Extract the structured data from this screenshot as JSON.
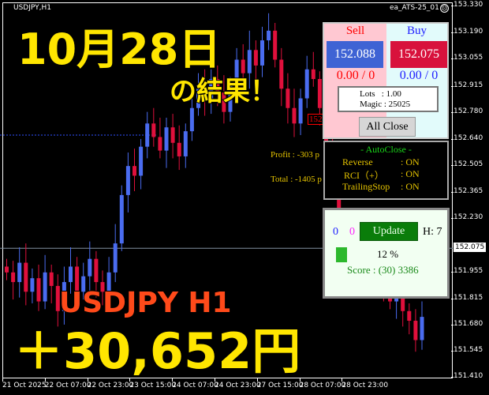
{
  "window": {
    "symbol_title": "USDJPY,H1",
    "ea_name": "ea_ATS-25_01",
    "ea_status_icon": "sad-face-icon"
  },
  "axis": {
    "y_ticks": [
      "153.330",
      "153.190",
      "153.055",
      "152.915",
      "152.780",
      "152.640",
      "152.505",
      "152.365",
      "152.230",
      "151.955",
      "151.815",
      "151.680",
      "151.545",
      "151.410"
    ],
    "y_range": [
      151.41,
      153.33
    ],
    "current_price": "152.075",
    "x_ticks": [
      "21 Oct 2025",
      "22 Oct 07:00",
      "22 Oct 23:00",
      "23 Oct 15:00",
      "24 Oct 07:00",
      "24 Oct 23:00",
      "27 Oct 15:00",
      "28 Oct 07:00",
      "28 Oct 23:00"
    ]
  },
  "candles_close": [
    151.95,
    151.9,
    152.0,
    151.85,
    151.92,
    151.8,
    151.95,
    151.88,
    151.75,
    151.9,
    151.98,
    151.85,
    151.93,
    152.02,
    151.9,
    151.85,
    151.95,
    152.1,
    152.35,
    152.5,
    152.45,
    152.6,
    152.72,
    152.65,
    152.58,
    152.7,
    152.62,
    152.55,
    152.68,
    152.8,
    152.9,
    152.85,
    152.95,
    152.88,
    152.78,
    152.92,
    153.05,
    152.98,
    153.1,
    153.02,
    153.15,
    153.2,
    153.05,
    152.9,
    152.8,
    152.72,
    152.85,
    153.0,
    152.95,
    152.8,
    152.6,
    152.4,
    152.2,
    152.1,
    152.0,
    151.95,
    152.05,
    151.9,
    151.95,
    151.85,
    151.8,
    151.9,
    151.75,
    151.7,
    151.6,
    151.72
  ],
  "colors": {
    "bull": "#4a6cf0",
    "bear": "#e0103c",
    "background": "#000000",
    "headline": "#ffe600",
    "subheadline": "#ff4a1a"
  },
  "overlay": {
    "date": "10月28日",
    "result": "の結果！",
    "pair": "USDJPY H1",
    "profit": "＋30,652円"
  },
  "chart_labels": {
    "order_price": "152.750",
    "profit": "Profit : -303 p",
    "total": "Total : -1405 p"
  },
  "trade_panel": {
    "sell_label": "Sell",
    "buy_label": "Buy",
    "sell_price": "152.088",
    "buy_price": "152.075",
    "sell_position": "0.00 / 0",
    "buy_position": "0.00 / 0",
    "lots": "Lots   : 1.00",
    "magic": "Magic : 25025",
    "all_close": "All Close"
  },
  "autoclose_panel": {
    "title": "- AutoClose -",
    "rows": [
      {
        "label": "Reverse",
        "value": ": ON"
      },
      {
        "label": "RCI（+）",
        "value": ": ON"
      },
      {
        "label": "TrailingStop",
        "value": ": ON"
      }
    ]
  },
  "score_panel": {
    "count_blue": "0",
    "count_magenta": "0",
    "update": "Update",
    "h": "H: 7",
    "percent": "12 %",
    "percent_value": 12,
    "score": "Score : (30) 3386"
  }
}
